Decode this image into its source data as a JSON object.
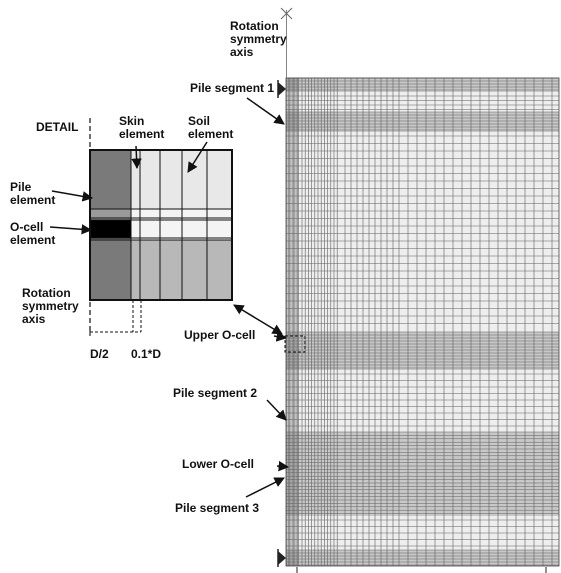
{
  "labels": {
    "rotation_axis_top": [
      "Rotation",
      "symmetry",
      "axis"
    ],
    "detail": "DETAIL",
    "skin_element": [
      "Skin",
      "element"
    ],
    "soil_element": [
      "Soil",
      "element"
    ],
    "pile_element": [
      "Pile",
      "element"
    ],
    "ocell_element": [
      "O-cell",
      "element"
    ],
    "rotation_axis_detail": [
      "Rotation",
      "symmetry",
      "axis"
    ],
    "dim_d_half": "D/2",
    "dim_skin": "0.1*D",
    "pile_segment_1": "Pile segment 1",
    "upper_ocell": "Upper O-cell",
    "pile_segment_2": "Pile segment 2",
    "lower_ocell": "Lower O-cell",
    "pile_segment_3": "Pile segment 3"
  },
  "colors": {
    "mesh_background": "#eeeeee",
    "mesh_line": "#5f5f5f",
    "mesh_band": "#a9a9a9",
    "pile_element": "#7a7a7a",
    "ocell_element": "#000000",
    "soil_light": "#e8e8e8",
    "soil_dark": "#b8b8b8",
    "text": "#111111"
  },
  "icons": {
    "top_marker": "cross-icon",
    "support_markers": "triangle-support-icon"
  }
}
